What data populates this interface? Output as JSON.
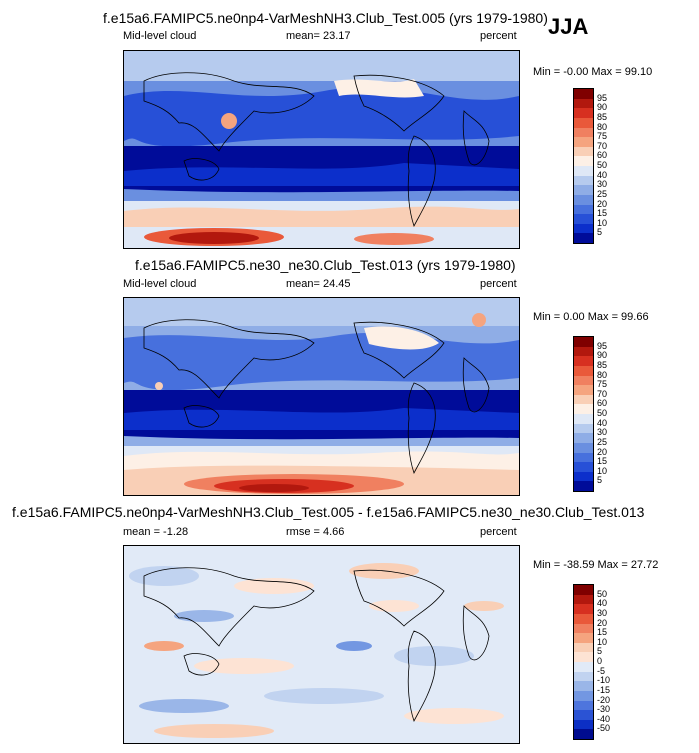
{
  "season": "JJA",
  "panels": [
    {
      "title": "f.e15a6.FAMIPC5.ne0np4-VarMeshNH3.Club_Test.005 (yrs 1979-1980)",
      "left_label": "Mid-level cloud",
      "stat": "mean=  23.17",
      "units": "percent",
      "minmax": "Min = -0.00 Max =  99.10",
      "cbar_labels": [
        "95",
        "90",
        "85",
        "80",
        "75",
        "70",
        "60",
        "50",
        "40",
        "30",
        "25",
        "20",
        "15",
        "10",
        "5"
      ]
    },
    {
      "title": "f.e15a6.FAMIPC5.ne30_ne30.Club_Test.013 (yrs 1979-1980)",
      "left_label": "Mid-level cloud",
      "stat": "mean=  24.45",
      "units": "percent",
      "minmax": "Min =   0.00 Max =  99.66",
      "cbar_labels": [
        "95",
        "90",
        "85",
        "80",
        "75",
        "70",
        "60",
        "50",
        "40",
        "30",
        "25",
        "20",
        "15",
        "10",
        "5"
      ]
    },
    {
      "title": "f.e15a6.FAMIPC5.ne0np4-VarMeshNH3.Club_Test.005 - f.e15a6.FAMIPC5.ne30_ne30.Club_Test.013",
      "left_label": "mean = -1.28",
      "stat": "rmse =   4.66",
      "units": "percent",
      "minmax": "Min = -38.59 Max =  27.72",
      "cbar_labels": [
        "50",
        "40",
        "30",
        "20",
        "15",
        "10",
        "5",
        "0",
        "-5",
        "-10",
        "-15",
        "-20",
        "-30",
        "-40",
        "-50"
      ]
    }
  ],
  "colors": {
    "abs_scale": [
      "#7f0000",
      "#b2180e",
      "#d73020",
      "#e9593a",
      "#f08060",
      "#f5a47f",
      "#f9cfb6",
      "#fdf0e6",
      "#dfe8f6",
      "#b6cbee",
      "#8fade6",
      "#6a8fe0",
      "#4770dd",
      "#2750d7",
      "#0c2fcb",
      "#000c99"
    ],
    "diff_scale": [
      "#7f0000",
      "#b2180e",
      "#d73020",
      "#e9593a",
      "#f08060",
      "#f5a47f",
      "#f9cfb6",
      "#fde3d4",
      "#e1eaf7",
      "#c1d3f0",
      "#9ab6e8",
      "#7397e2",
      "#4e75dd",
      "#2b53d4",
      "#0c2fc4",
      "#000c8f"
    ]
  }
}
